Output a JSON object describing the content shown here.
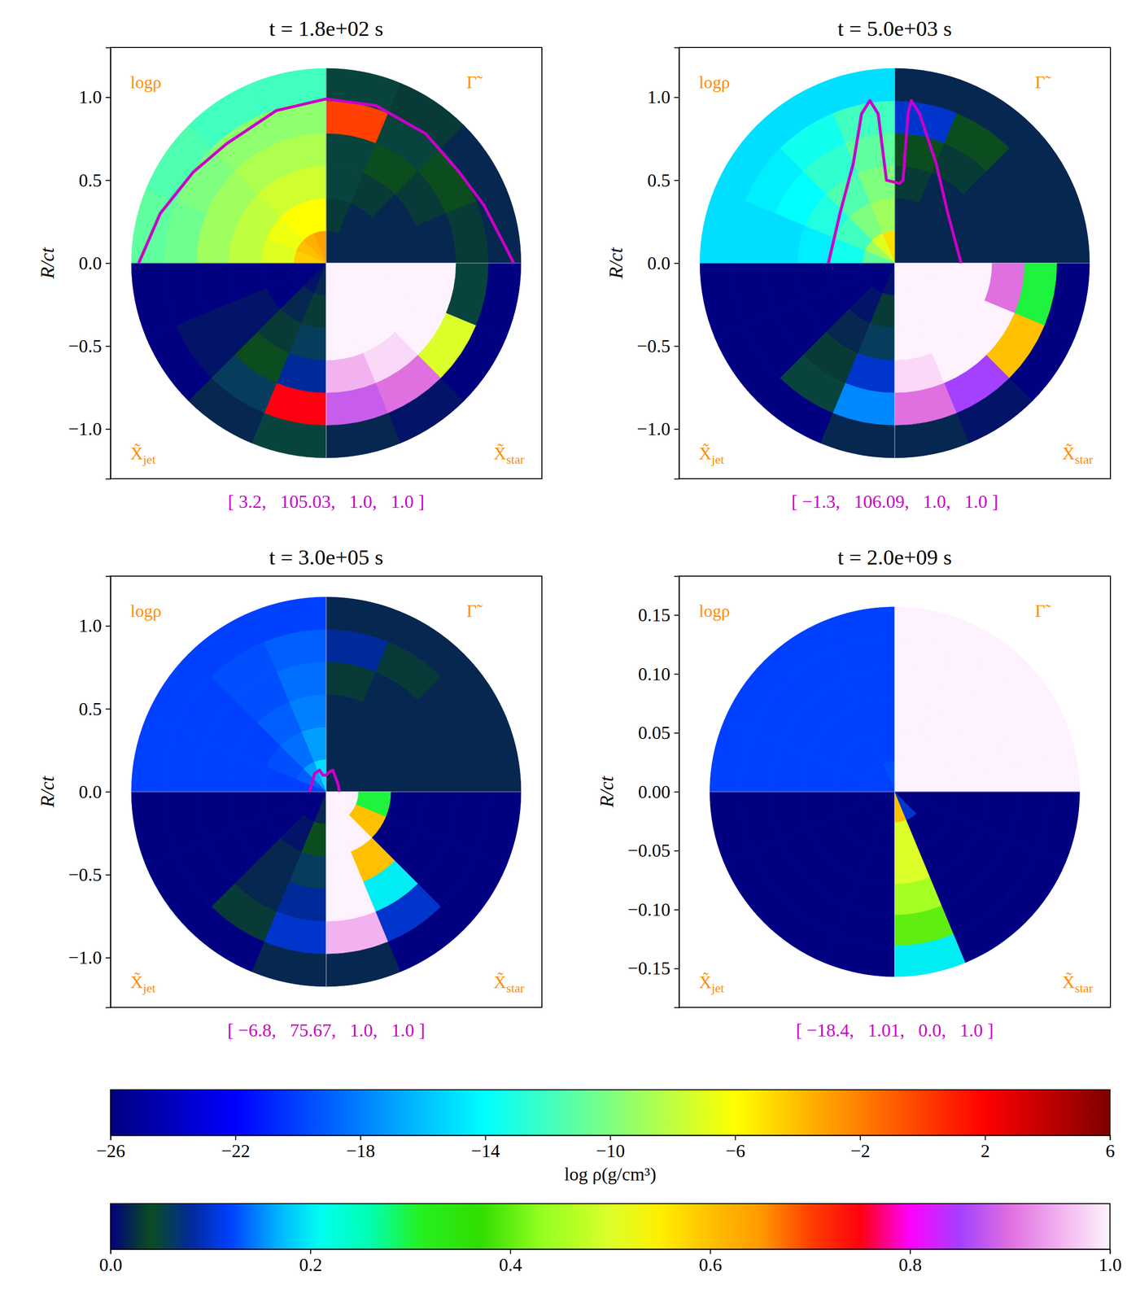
{
  "chart_data": {
    "type": "polar_heatmap_panels",
    "y_label": "R/ct",
    "colorbars": [
      {
        "label": "log ρ(g/cm³)",
        "range": [
          -26,
          6
        ],
        "ticks": [
          -26,
          -22,
          -18,
          -14,
          -10,
          -6,
          -2,
          2,
          6
        ]
      },
      {
        "range": [
          0,
          1
        ],
        "ticks": [
          {
            "value": 0,
            "label": "0.0"
          },
          {
            "value": 0.2,
            "label": "0.2"
          },
          {
            "value": 0.4,
            "label": "0.4"
          },
          {
            "value": 0.6,
            "label": "0.6"
          },
          {
            "value": 0.8,
            "label": "0.8"
          },
          {
            "value": 1,
            "label": "1.0"
          }
        ]
      }
    ],
    "panels": [
      {
        "title": "t = 1.8e+02 s",
        "xlim": [
          -1.3,
          1.3
        ],
        "ylim": [
          -1.3,
          1.3
        ],
        "radius": 1.175,
        "tick_labels": "y",
        "yticks": [
          {
            "value": -1,
            "label": "−1.0"
          },
          {
            "value": -0.5,
            "label": "−0.5"
          },
          {
            "value": 0,
            "label": "0.0"
          },
          {
            "value": 0.5,
            "label": "0.5"
          },
          {
            "value": 1,
            "label": "1.0"
          }
        ],
        "annotation": "[ 3.2,   105.03,   1.0,   1.0 ]",
        "contour": {
          "x": [
            -1.13,
            -1.0,
            -0.8,
            -0.6,
            -0.3,
            0,
            0.3,
            0.6,
            0.8,
            0.95,
            1.08,
            1.13
          ],
          "y": [
            0,
            0.3,
            0.55,
            0.72,
            0.92,
            0.99,
            0.95,
            0.78,
            0.55,
            0.35,
            0.1,
            0
          ]
        },
        "quadrants": [
          {
            "position": "top-left",
            "label": "logρ",
            "colorbar": 0,
            "cells": [
              [
                -3,
                -3.5,
                -4,
                -4.5
              ],
              [
                -6,
                -6,
                -6.5,
                -7
              ],
              [
                -7.5,
                -7.5,
                -8,
                -8
              ],
              [
                -8.5,
                -8.5,
                -9,
                -9
              ],
              [
                -9.5,
                -9.5,
                -10,
                -10.5
              ],
              [
                -12,
                -12,
                -11.5,
                -11
              ]
            ]
          },
          {
            "position": "top-right",
            "label": "Γ̃",
            "colorbar": 1,
            "cells": [
              [
                0.02,
                0.02,
                0.02,
                0.02
              ],
              [
                0.03,
                0.02,
                0.02,
                0.02
              ],
              [
                0.05,
                0.03,
                0.02,
                0.02
              ],
              [
                0.05,
                0.04,
                0.03,
                0.02
              ],
              [
                0.7,
                0.05,
                0.04,
                0.03
              ],
              [
                0.05,
                0.03,
                0.02,
                0.02
              ]
            ]
          },
          {
            "position": "bottom-left",
            "label": "X̃",
            "subscript": "jet",
            "colorbar": 1,
            "cells": [
              [
                0.02,
                0.01,
                0,
                0
              ],
              [
                0.03,
                0.02,
                0,
                0
              ],
              [
                0.06,
                0.03,
                0.01,
                0
              ],
              [
                0.08,
                0.04,
                0.01,
                0
              ],
              [
                0.75,
                0.06,
                0.01,
                0
              ],
              [
                0.05,
                0.02,
                0,
                0
              ]
            ]
          },
          {
            "position": "bottom-right",
            "label": "X̃",
            "subscript": "star",
            "colorbar": 1,
            "cells": [
              [
                1,
                1,
                1,
                1
              ],
              [
                1,
                1,
                1,
                1
              ],
              [
                1,
                1,
                1,
                1
              ],
              [
                0.95,
                0.98,
                1,
                1
              ],
              [
                0.88,
                0.9,
                0.5,
                0.05
              ],
              [
                0.02,
                0.01,
                0,
                0
              ]
            ]
          }
        ]
      },
      {
        "title": "t = 5.0e+03 s",
        "xlim": [
          -1.3,
          1.3
        ],
        "ylim": [
          -1.3,
          1.3
        ],
        "radius": 1.175,
        "tick_labels": "y",
        "yticks": [
          {
            "value": -1,
            "label": "−1.0"
          },
          {
            "value": -0.5,
            "label": "−0.5"
          },
          {
            "value": 0,
            "label": "0.0"
          },
          {
            "value": 0.5,
            "label": "0.5"
          },
          {
            "value": 1,
            "label": "1.0"
          }
        ],
        "annotation": "[ −1.3,   106.09,   1.0,   1.0 ]",
        "contour": {
          "x": [
            -0.4,
            -0.33,
            -0.25,
            -0.2,
            -0.15,
            -0.1,
            -0.05,
            0.03,
            0.05,
            0.08,
            0.1,
            0.15,
            0.25,
            0.32,
            0.4
          ],
          "y": [
            0,
            0.3,
            0.6,
            0.9,
            0.98,
            0.9,
            0.5,
            0.48,
            0.5,
            0.9,
            0.98,
            0.9,
            0.6,
            0.3,
            0
          ]
        },
        "quadrants": [
          {
            "position": "top-left",
            "label": "logρ",
            "colorbar": 0,
            "cells": [
              [
                -5,
                -7,
                -9,
                -11
              ],
              [
                -9,
                -10,
                -12,
                -13.5
              ],
              [
                -10,
                -11.5,
                -13,
                -14.5
              ],
              [
                -11,
                -12.5,
                -14,
                -15
              ],
              [
                -12,
                -13.5,
                -14.5,
                -15
              ],
              [
                -15,
                -15,
                -15,
                -15
              ]
            ]
          },
          {
            "position": "top-right",
            "label": "Γ̃",
            "colorbar": 1,
            "cells": [
              [
                0.02,
                0.02,
                0.02,
                0.02
              ],
              [
                0.02,
                0.02,
                0.02,
                0.02
              ],
              [
                0.03,
                0.02,
                0.02,
                0.02
              ],
              [
                0.04,
                0.03,
                0.02,
                0.02
              ],
              [
                0.1,
                0.04,
                0.02,
                0.02
              ],
              [
                0.02,
                0.02,
                0.02,
                0.02
              ]
            ]
          },
          {
            "position": "bottom-left",
            "label": "X̃",
            "subscript": "jet",
            "colorbar": 1,
            "cells": [
              [
                0.01,
                0,
                0,
                0
              ],
              [
                0.03,
                0.01,
                0,
                0
              ],
              [
                0.06,
                0.02,
                0,
                0
              ],
              [
                0.1,
                0.03,
                0,
                0
              ],
              [
                0.15,
                0.05,
                0,
                0
              ],
              [
                0.02,
                0,
                0,
                0
              ]
            ]
          },
          {
            "position": "bottom-right",
            "label": "X̃",
            "subscript": "star",
            "colorbar": 1,
            "cells": [
              [
                1,
                1,
                1,
                1
              ],
              [
                1,
                1,
                1,
                1
              ],
              [
                1,
                1,
                1,
                1
              ],
              [
                0.98,
                1,
                1,
                0.9
              ],
              [
                0.9,
                0.85,
                0.6,
                0.3
              ],
              [
                0.02,
                0.01,
                0,
                0
              ]
            ]
          }
        ]
      },
      {
        "title": "t = 3.0e+05 s",
        "xlim": [
          -1.3,
          1.3
        ],
        "ylim": [
          -1.3,
          1.3
        ],
        "radius": 1.175,
        "tick_labels": "y",
        "yticks": [
          {
            "value": -1,
            "label": "−1.0"
          },
          {
            "value": -0.5,
            "label": "−0.5"
          },
          {
            "value": 0,
            "label": "0.0"
          },
          {
            "value": 0.5,
            "label": "0.5"
          },
          {
            "value": 1,
            "label": "1.0"
          }
        ],
        "annotation": "[ −6.8,   75.67,   1.0,   1.0 ]",
        "contour": {
          "x": [
            -0.1,
            -0.07,
            -0.04,
            -0.02,
            0,
            0.02,
            0.04,
            0.07,
            0.08
          ],
          "y": [
            0,
            0.11,
            0.13,
            0.1,
            0.1,
            0.12,
            0.13,
            0.05,
            0
          ]
        },
        "quadrants": [
          {
            "position": "top-left",
            "label": "logρ",
            "colorbar": 0,
            "cells": [
              [
                -15,
                -17,
                -19,
                -20
              ],
              [
                -17,
                -18.5,
                -19.5,
                -20
              ],
              [
                -18,
                -19,
                -20,
                -20
              ],
              [
                -18.5,
                -19.5,
                -20,
                -20
              ],
              [
                -19,
                -19.5,
                -20,
                -20
              ],
              [
                -20,
                -20,
                -20,
                -20
              ]
            ]
          },
          {
            "position": "top-right",
            "label": "Γ̃",
            "colorbar": 1,
            "cells": [
              [
                0.02,
                0.02,
                0.02,
                0.02
              ],
              [
                0.02,
                0.02,
                0.02,
                0.02
              ],
              [
                0.02,
                0.02,
                0.02,
                0.02
              ],
              [
                0.03,
                0.02,
                0.02,
                0.02
              ],
              [
                0.08,
                0.03,
                0.02,
                0.02
              ],
              [
                0.02,
                0.02,
                0.02,
                0.02
              ]
            ]
          },
          {
            "position": "bottom-left",
            "label": "X̃",
            "subscript": "jet",
            "colorbar": 1,
            "cells": [
              [
                0.02,
                0,
                0,
                0
              ],
              [
                0.04,
                0.01,
                0,
                0
              ],
              [
                0.06,
                0.02,
                0,
                0
              ],
              [
                0.08,
                0.02,
                0,
                0
              ],
              [
                0.1,
                0.03,
                0,
                0
              ],
              [
                0.02,
                0,
                0,
                0
              ]
            ]
          },
          {
            "position": "bottom-right",
            "label": "X̃",
            "subscript": "star",
            "colorbar": 1,
            "cells": [
              [
                1,
                1,
                1,
                1
              ],
              [
                1,
                1,
                0.6,
                0.3
              ],
              [
                1,
                0.6,
                0,
                0
              ],
              [
                1,
                0.2,
                0,
                0
              ],
              [
                0.95,
                0.1,
                0,
                0
              ],
              [
                0.02,
                0,
                0,
                0
              ]
            ]
          }
        ]
      },
      {
        "title": "t = 2.0e+09 s",
        "xlim": [
          -0.183,
          0.183
        ],
        "ylim": [
          -0.183,
          0.183
        ],
        "radius": 0.157,
        "tick_labels": "y",
        "yticks": [
          {
            "value": -0.15,
            "label": "−0.15"
          },
          {
            "value": -0.1,
            "label": "−0.10"
          },
          {
            "value": -0.05,
            "label": "−0.05"
          },
          {
            "value": 0,
            "label": "0.00"
          },
          {
            "value": 0.05,
            "label": "0.05"
          },
          {
            "value": 0.1,
            "label": "0.10"
          },
          {
            "value": 0.15,
            "label": "0.15"
          }
        ],
        "annotation": "[ −18.4,   1.01,   0.0,   1.0 ]",
        "quadrants": [
          {
            "position": "top-left",
            "label": "logρ",
            "colorbar": 0,
            "cells": [
              [
                -19.5,
                -20,
                -20,
                -20
              ],
              [
                -20,
                -20,
                -20,
                -20
              ],
              [
                -20,
                -20,
                -20,
                -20
              ],
              [
                -20,
                -20,
                -20,
                -20
              ],
              [
                -20,
                -20,
                -20,
                -20
              ],
              [
                -20,
                -20,
                -20,
                -20
              ]
            ]
          },
          {
            "position": "top-right",
            "label": "Γ̃",
            "colorbar": 1,
            "cells": [
              [
                1,
                1,
                1,
                1
              ],
              [
                1,
                1,
                1,
                1
              ],
              [
                1,
                1,
                1,
                1
              ],
              [
                1,
                1,
                1,
                1
              ],
              [
                1,
                1,
                1,
                1
              ],
              [
                1,
                1,
                1,
                1
              ]
            ]
          },
          {
            "position": "bottom-left",
            "label": "X̃",
            "subscript": "jet",
            "colorbar": 1,
            "cells": [
              [
                0,
                0,
                0,
                0
              ],
              [
                0,
                0,
                0,
                0
              ],
              [
                0,
                0,
                0,
                0
              ],
              [
                0,
                0,
                0,
                0
              ],
              [
                0,
                0,
                0,
                0
              ],
              [
                0,
                0,
                0,
                0
              ]
            ]
          },
          {
            "position": "bottom-right",
            "label": "X̃",
            "subscript": "star",
            "colorbar": 1,
            "cells": [
              [
                0.6,
                0.1,
                0,
                0
              ],
              [
                0.5,
                0,
                0,
                0
              ],
              [
                0.5,
                0,
                0,
                0
              ],
              [
                0.45,
                0,
                0,
                0
              ],
              [
                0.4,
                0,
                0,
                0
              ],
              [
                0.2,
                0,
                0,
                0
              ]
            ]
          }
        ]
      }
    ]
  }
}
